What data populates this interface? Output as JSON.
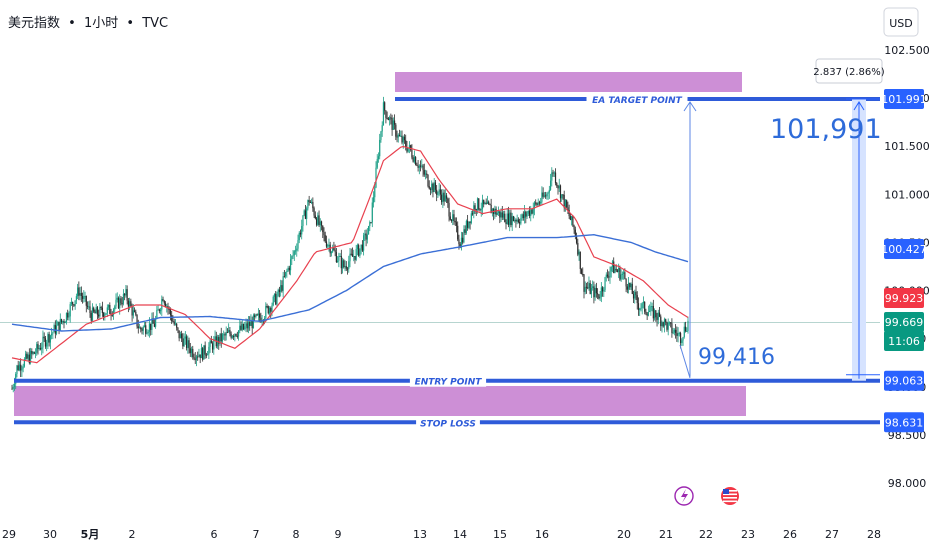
{
  "header": {
    "symbol": "美元指数",
    "interval": "1小时",
    "source": "TVC",
    "separator": "•"
  },
  "currency": "USD",
  "colors": {
    "zone_fill": "#cd8fd6",
    "level_line": "#2e5bd9",
    "ma_red": "#e8414f",
    "ma_blue": "#3b6fd6",
    "candle_green": "#1b9e86",
    "candle_dark": "#2b2b2b",
    "price_badge_blue": "#2962ff",
    "price_badge_red": "#f23645",
    "price_badge_green": "#089981",
    "measure_fill": "#d6e3ff"
  },
  "levels": {
    "target_label": "EA TARGET POINT",
    "entry_label": "ENTRY POINT",
    "stop_label": "STOP LOSS",
    "target_value": 101.991,
    "entry_value": 99.063,
    "stop_value": 98.631
  },
  "annotations": {
    "big_target": "101,991",
    "big_current": "99,416",
    "measure_box": "2.837 (2.86%)"
  },
  "price_badges": [
    {
      "text": "101.991",
      "kind": "blue"
    },
    {
      "text": "100.427",
      "kind": "blue"
    },
    {
      "text": "99.923",
      "kind": "red"
    },
    {
      "text": "99.669",
      "kind": "green"
    },
    {
      "text": "11:06",
      "kind": "green"
    },
    {
      "text": "99.063",
      "kind": "blue"
    },
    {
      "text": "98.631",
      "kind": "blue"
    }
  ],
  "events": {
    "flash_icon": "lightning-icon",
    "flag_icon": "us-flag-icon"
  },
  "chart_data": {
    "type": "candlestick",
    "y_axis": {
      "range": [
        97.8,
        102.75
      ],
      "ticks": [
        "102.500",
        "102.000",
        "101.500",
        "101.000",
        "100.500",
        "100.000",
        "99.500",
        "99.000",
        "98.500",
        "98.000"
      ]
    },
    "x_axis": {
      "ticks": [
        "29",
        "30",
        "5月",
        "2",
        "6",
        "7",
        "8",
        "9",
        "13",
        "14",
        "15",
        "16",
        "20",
        "21",
        "22",
        "23",
        "26",
        "27",
        "28"
      ]
    },
    "last_price": 99.669,
    "price_keys": [
      [
        0,
        98.98
      ],
      [
        4,
        99.2
      ],
      [
        18,
        99.35
      ],
      [
        28,
        99.5
      ],
      [
        42,
        99.7
      ],
      [
        54,
        100.0
      ],
      [
        64,
        99.75
      ],
      [
        80,
        99.8
      ],
      [
        92,
        99.95
      ],
      [
        103,
        99.6
      ],
      [
        115,
        99.65
      ],
      [
        122,
        99.95
      ],
      [
        134,
        99.55
      ],
      [
        147,
        99.35
      ],
      [
        154,
        99.35
      ],
      [
        163,
        99.45
      ],
      [
        175,
        99.55
      ],
      [
        187,
        99.6
      ],
      [
        203,
        99.75
      ],
      [
        215,
        99.95
      ],
      [
        228,
        100.4
      ],
      [
        240,
        100.95
      ],
      [
        252,
        100.55
      ],
      [
        268,
        100.25
      ],
      [
        282,
        100.45
      ],
      [
        289,
        100.65
      ],
      [
        300,
        101.9
      ],
      [
        312,
        101.6
      ],
      [
        322,
        101.45
      ],
      [
        338,
        101.1
      ],
      [
        350,
        100.95
      ],
      [
        362,
        100.5
      ],
      [
        374,
        100.9
      ],
      [
        386,
        100.85
      ],
      [
        400,
        100.75
      ],
      [
        412,
        100.75
      ],
      [
        420,
        100.85
      ],
      [
        432,
        101.0
      ],
      [
        437,
        101.25
      ],
      [
        445,
        100.95
      ],
      [
        455,
        100.6
      ],
      [
        462,
        100.05
      ],
      [
        474,
        99.95
      ],
      [
        484,
        100.25
      ],
      [
        494,
        100.15
      ],
      [
        506,
        99.85
      ],
      [
        520,
        99.75
      ],
      [
        532,
        99.6
      ],
      [
        540,
        99.52
      ],
      [
        546,
        99.67
      ]
    ],
    "ma_red_keys": [
      [
        0,
        99.3
      ],
      [
        20,
        99.25
      ],
      [
        40,
        99.45
      ],
      [
        60,
        99.65
      ],
      [
        80,
        99.75
      ],
      [
        100,
        99.85
      ],
      [
        120,
        99.85
      ],
      [
        140,
        99.75
      ],
      [
        160,
        99.5
      ],
      [
        180,
        99.4
      ],
      [
        200,
        99.6
      ],
      [
        215,
        99.85
      ],
      [
        230,
        100.1
      ],
      [
        245,
        100.4
      ],
      [
        260,
        100.45
      ],
      [
        275,
        100.5
      ],
      [
        290,
        101.0
      ],
      [
        300,
        101.35
      ],
      [
        315,
        101.5
      ],
      [
        330,
        101.45
      ],
      [
        345,
        101.15
      ],
      [
        360,
        100.9
      ],
      [
        380,
        100.8
      ],
      [
        400,
        100.85
      ],
      [
        420,
        100.85
      ],
      [
        440,
        100.95
      ],
      [
        455,
        100.75
      ],
      [
        470,
        100.35
      ],
      [
        490,
        100.25
      ],
      [
        510,
        100.1
      ],
      [
        530,
        99.85
      ],
      [
        546,
        99.72
      ]
    ],
    "ma_blue_keys": [
      [
        0,
        99.65
      ],
      [
        40,
        99.58
      ],
      [
        80,
        99.6
      ],
      [
        120,
        99.72
      ],
      [
        160,
        99.73
      ],
      [
        200,
        99.68
      ],
      [
        240,
        99.8
      ],
      [
        270,
        100.0
      ],
      [
        300,
        100.25
      ],
      [
        330,
        100.38
      ],
      [
        360,
        100.45
      ],
      [
        400,
        100.55
      ],
      [
        440,
        100.55
      ],
      [
        470,
        100.58
      ],
      [
        500,
        100.5
      ],
      [
        520,
        100.4
      ],
      [
        546,
        100.3
      ]
    ]
  }
}
